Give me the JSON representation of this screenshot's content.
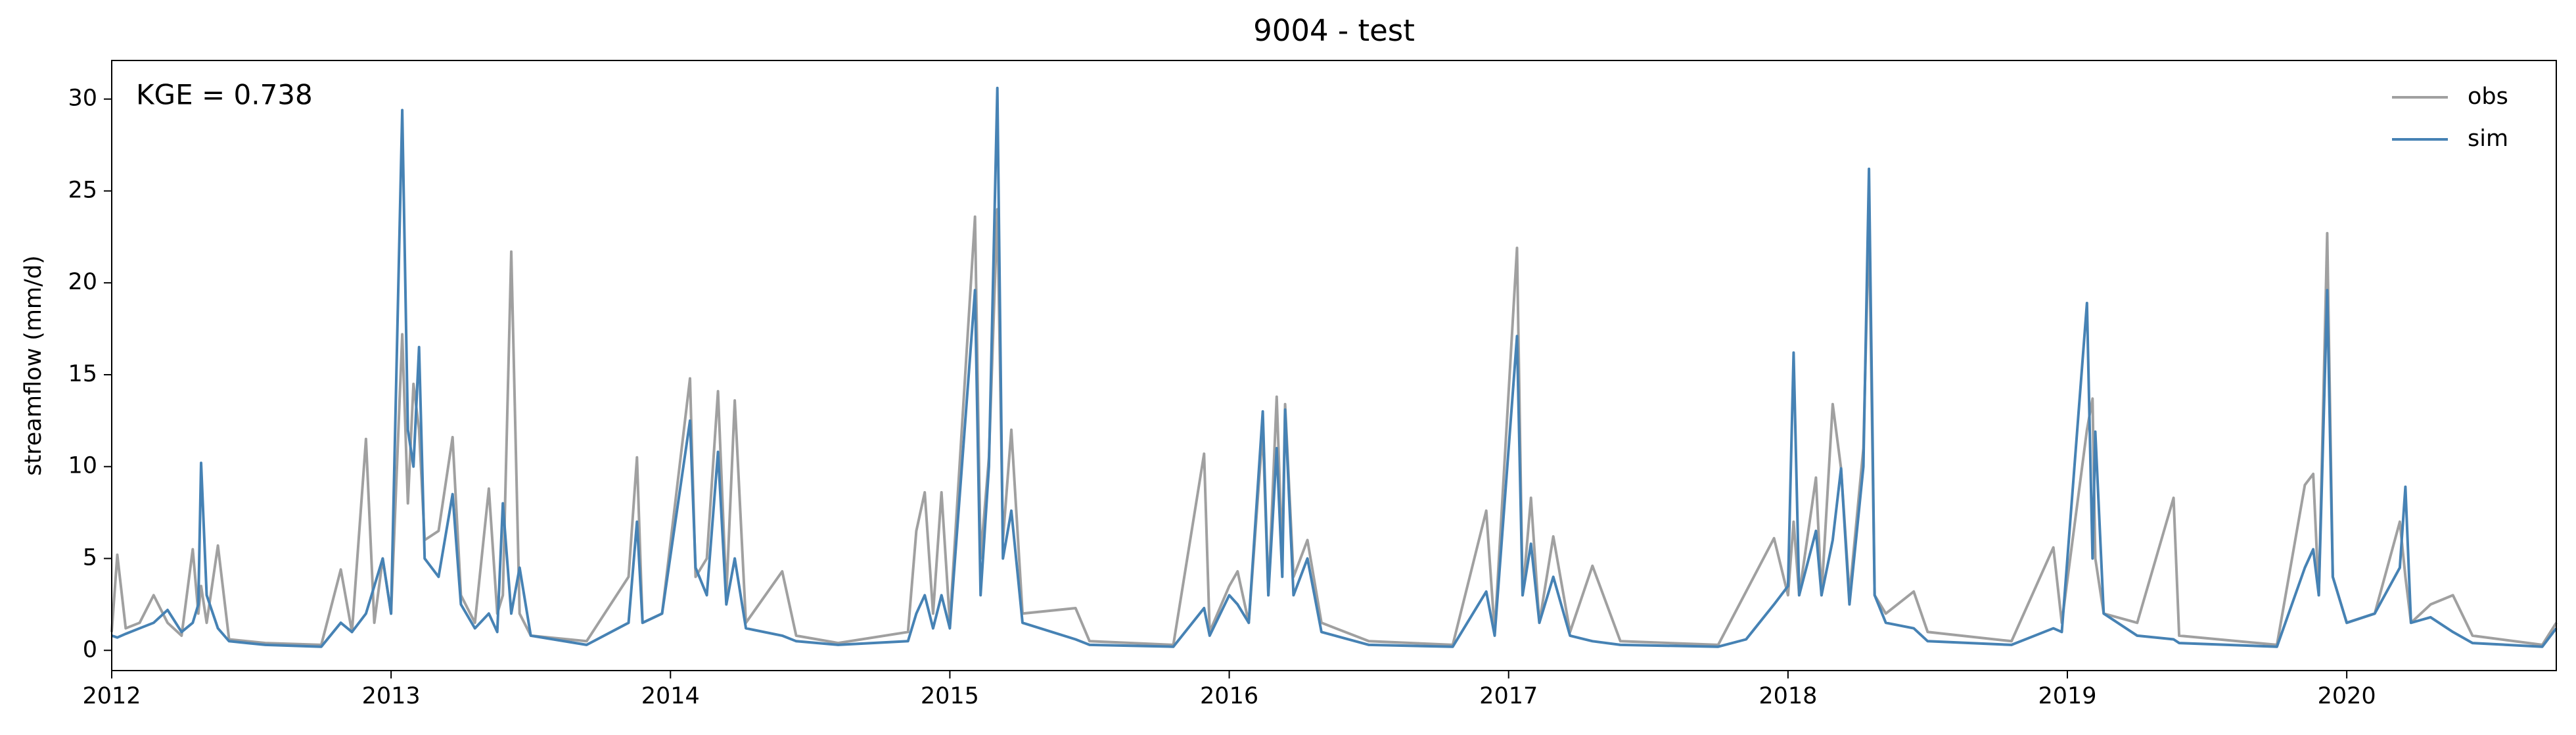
{
  "chart_data": {
    "type": "line",
    "title": "9004 - test",
    "ylabel": "streamflow (mm/d)",
    "annotation": "KGE = 0.738",
    "x": [
      2012.0,
      2012.02,
      2012.05,
      2012.1,
      2012.15,
      2012.2,
      2012.25,
      2012.29,
      2012.31,
      2012.32,
      2012.34,
      2012.38,
      2012.42,
      2012.55,
      2012.75,
      2012.82,
      2012.86,
      2012.91,
      2012.94,
      2012.97,
      2013.0,
      2013.04,
      2013.06,
      2013.08,
      2013.1,
      2013.12,
      2013.17,
      2013.22,
      2013.25,
      2013.3,
      2013.35,
      2013.38,
      2013.4,
      2013.43,
      2013.46,
      2013.5,
      2013.7,
      2013.85,
      2013.88,
      2013.9,
      2013.97,
      2014.07,
      2014.09,
      2014.13,
      2014.17,
      2014.2,
      2014.23,
      2014.27,
      2014.4,
      2014.45,
      2014.6,
      2014.85,
      2014.88,
      2014.91,
      2014.94,
      2014.97,
      2015.0,
      2015.09,
      2015.11,
      2015.14,
      2015.17,
      2015.19,
      2015.22,
      2015.26,
      2015.45,
      2015.5,
      2015.8,
      2015.91,
      2015.93,
      2016.0,
      2016.03,
      2016.07,
      2016.12,
      2016.14,
      2016.17,
      2016.19,
      2016.2,
      2016.23,
      2016.28,
      2016.33,
      2016.5,
      2016.8,
      2016.92,
      2016.95,
      2017.03,
      2017.05,
      2017.08,
      2017.11,
      2017.16,
      2017.22,
      2017.3,
      2017.4,
      2017.75,
      2017.85,
      2017.95,
      2018.0,
      2018.02,
      2018.04,
      2018.1,
      2018.12,
      2018.16,
      2018.19,
      2018.22,
      2018.27,
      2018.29,
      2018.31,
      2018.35,
      2018.45,
      2018.5,
      2018.8,
      2018.95,
      2018.98,
      2019.07,
      2019.09,
      2019.1,
      2019.13,
      2019.25,
      2019.38,
      2019.4,
      2019.75,
      2019.85,
      2019.88,
      2019.9,
      2019.93,
      2019.95,
      2020.0,
      2020.1,
      2020.19,
      2020.21,
      2020.23,
      2020.3,
      2020.38,
      2020.45,
      2020.7,
      2020.75
    ],
    "series": [
      {
        "name": "obs",
        "color": "#a0a0a0",
        "values": [
          1.0,
          5.2,
          1.2,
          1.5,
          3.0,
          1.5,
          0.8,
          5.5,
          2.0,
          3.5,
          1.5,
          5.7,
          0.6,
          0.4,
          0.3,
          4.4,
          1.0,
          11.5,
          1.5,
          5.0,
          2.0,
          17.2,
          8.0,
          14.5,
          12.0,
          6.0,
          6.5,
          11.6,
          3.0,
          1.5,
          8.8,
          2.0,
          3.0,
          21.7,
          2.0,
          0.8,
          0.5,
          4.0,
          10.5,
          1.5,
          2.0,
          14.8,
          4.0,
          5.0,
          14.1,
          3.0,
          13.6,
          1.5,
          4.3,
          0.8,
          0.4,
          1.0,
          6.5,
          8.6,
          2.0,
          8.6,
          1.5,
          23.6,
          5.0,
          10.5,
          24.0,
          6.0,
          12.0,
          2.0,
          2.3,
          0.5,
          0.3,
          10.7,
          1.0,
          3.5,
          4.3,
          1.5,
          12.0,
          3.0,
          13.8,
          5.0,
          13.4,
          4.0,
          6.0,
          1.5,
          0.5,
          0.3,
          7.6,
          1.0,
          21.9,
          3.0,
          8.3,
          1.5,
          6.2,
          1.0,
          4.6,
          0.5,
          0.3,
          3.2,
          6.1,
          3.0,
          7.0,
          3.0,
          9.4,
          3.0,
          13.4,
          9.9,
          3.0,
          11.0,
          23.5,
          3.0,
          2.0,
          3.2,
          1.0,
          0.5,
          5.6,
          1.5,
          12.0,
          13.7,
          5.0,
          2.0,
          1.5,
          8.3,
          0.8,
          0.3,
          9.0,
          9.6,
          3.0,
          22.7,
          4.0,
          1.5,
          2.0,
          7.0,
          4.0,
          1.5,
          2.5,
          3.0,
          0.8,
          0.3,
          1.5
        ]
      },
      {
        "name": "sim",
        "color": "#4682b4",
        "values": [
          0.8,
          0.7,
          0.9,
          1.2,
          1.5,
          2.2,
          1.0,
          1.5,
          2.5,
          10.2,
          3.0,
          1.2,
          0.5,
          0.3,
          0.2,
          1.5,
          1.0,
          2.0,
          3.5,
          5.0,
          2.0,
          29.4,
          12.0,
          10.0,
          16.5,
          5.0,
          4.0,
          8.5,
          2.5,
          1.2,
          2.0,
          1.0,
          8.0,
          2.0,
          4.5,
          0.8,
          0.3,
          1.5,
          7.0,
          1.5,
          2.0,
          12.5,
          4.5,
          3.0,
          10.8,
          2.5,
          5.0,
          1.2,
          0.8,
          0.5,
          0.3,
          0.5,
          2.0,
          3.0,
          1.2,
          3.0,
          1.2,
          19.6,
          3.0,
          10.0,
          30.6,
          5.0,
          7.6,
          1.5,
          0.6,
          0.3,
          0.2,
          2.3,
          0.8,
          3.0,
          2.5,
          1.5,
          13.0,
          3.0,
          11.0,
          4.0,
          13.1,
          3.0,
          5.0,
          1.0,
          0.3,
          0.2,
          3.2,
          0.8,
          17.1,
          3.0,
          5.8,
          1.5,
          4.0,
          0.8,
          0.5,
          0.3,
          0.2,
          0.6,
          2.5,
          3.5,
          16.2,
          3.0,
          6.5,
          3.0,
          6.0,
          9.9,
          2.5,
          10.0,
          26.2,
          3.0,
          1.5,
          1.2,
          0.5,
          0.3,
          1.2,
          1.0,
          18.9,
          5.0,
          11.9,
          2.0,
          0.8,
          0.6,
          0.4,
          0.2,
          4.5,
          5.5,
          3.0,
          19.6,
          4.0,
          1.5,
          2.0,
          4.5,
          8.9,
          1.5,
          1.8,
          1.0,
          0.4,
          0.2,
          1.2
        ]
      }
    ],
    "xlim": [
      2012,
      2020.75
    ],
    "xticks": [
      2012,
      2013,
      2014,
      2015,
      2016,
      2017,
      2018,
      2019,
      2020
    ],
    "ylim": [
      -1.1,
      32.1
    ],
    "yticks": [
      0,
      5,
      10,
      15,
      20,
      25,
      30
    ],
    "legend": "upper right",
    "grid": false
  }
}
